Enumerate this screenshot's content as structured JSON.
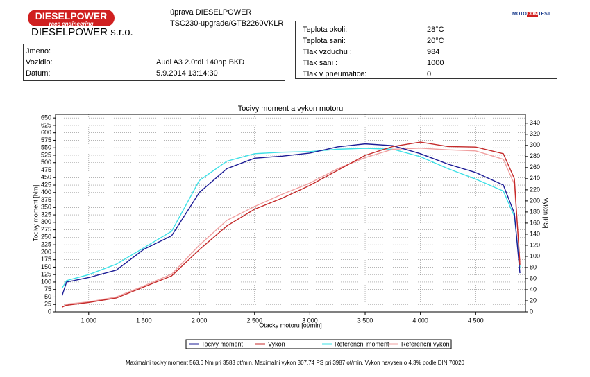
{
  "header": {
    "logo": "DIESELPOWER",
    "logo_sub": "race engineering",
    "company": "DIESELPOWER s.r.o.",
    "line1": "úprava DIESELPOWER",
    "line2": "TSC230-upgrade/GTB2260VKLR",
    "badge": [
      "MOTO",
      "COM",
      "TEST"
    ],
    "vehicle": [
      {
        "label": "Jmeno:"
      },
      {
        "label": "Vozidlo:",
        "value": "Audi A3 2.0tdi 140hp BKD"
      },
      {
        "label": "Datum:",
        "value": "5.9.2014 13:14:30"
      }
    ],
    "conditions": [
      {
        "label": "Teplota okoli:",
        "value": "28°C"
      },
      {
        "label": "Teplota sani:",
        "value": "20°C"
      },
      {
        "label": "Tlak vzduchu :",
        "value": "984"
      },
      {
        "label": "Tlak sani :",
        "value": "1000"
      },
      {
        "label": "Tlak v pneumatice:",
        "value": "0"
      }
    ]
  },
  "chart_data": {
    "type": "line",
    "title": "Tocivy moment a vykon motoru",
    "x_label": "Otacky motoru [ot/min]",
    "y_label": "Tocivy moment [Nm]",
    "y2_label": "Vykon [PS]",
    "x": [
      760,
      800,
      1000,
      1250,
      1500,
      1750,
      2000,
      2250,
      2500,
      2750,
      3000,
      3250,
      3500,
      3750,
      4000,
      4250,
      4500,
      4750,
      4850,
      4900
    ],
    "xlim": [
      700,
      4950
    ],
    "xticks": [
      {
        "value": 1000,
        "label": "1 000"
      },
      {
        "value": 1500,
        "label": "1 500"
      },
      {
        "value": 2000,
        "label": "2 000"
      },
      {
        "value": 2500,
        "label": "2 500"
      },
      {
        "value": 3000,
        "label": "3 000"
      },
      {
        "value": 3500,
        "label": "3 500"
      },
      {
        "value": 4000,
        "label": "4 000"
      },
      {
        "value": 4500,
        "label": "4 500"
      }
    ],
    "ylim": [
      0,
      662
    ],
    "yticks": [
      0,
      25,
      50,
      75,
      100,
      125,
      150,
      175,
      200,
      225,
      250,
      275,
      300,
      325,
      350,
      375,
      400,
      425,
      450,
      475,
      500,
      525,
      550,
      575,
      600,
      625,
      650
    ],
    "y2lim": [
      0,
      356
    ],
    "y2ticks": [
      0,
      20,
      40,
      60,
      80,
      100,
      120,
      140,
      160,
      180,
      200,
      220,
      240,
      260,
      280,
      300,
      320,
      340
    ],
    "grid": true,
    "series": [
      {
        "name": "Tocivy moment",
        "color": "#1c1c96",
        "values": [
          55,
          100,
          115,
          140,
          210,
          255,
          400,
          480,
          515,
          522,
          532,
          553,
          563,
          557,
          530,
          495,
          467,
          425,
          330,
          130
        ]
      },
      {
        "name": "Vykon",
        "color": "#c42a2a",
        "axis": "y2",
        "values": [
          9,
          12,
          17,
          25,
          45,
          65,
          112,
          155,
          185,
          205,
          228,
          255,
          282,
          298,
          306,
          298,
          297,
          285,
          240,
          85
        ]
      },
      {
        "name": "Referencni moment",
        "color": "#3ee0e6",
        "values": [
          80,
          105,
          125,
          160,
          215,
          270,
          440,
          505,
          530,
          535,
          537,
          545,
          548,
          545,
          520,
          480,
          445,
          405,
          320,
          150
        ]
      },
      {
        "name": "Referencni vykon",
        "color": "#f0a0a0",
        "axis": "y2",
        "values": [
          8,
          14,
          18,
          27,
          47,
          68,
          120,
          165,
          190,
          212,
          232,
          258,
          278,
          293,
          295,
          292,
          290,
          275,
          230,
          90
        ]
      }
    ],
    "footer": "Maximalni tocivy moment 563,6 Nm pri 3583 ot/min,  Maximalni vykon 307,74 PS pri 3987 ot/min,  Vykon navysen o 4,3% podle DIN 70020"
  }
}
